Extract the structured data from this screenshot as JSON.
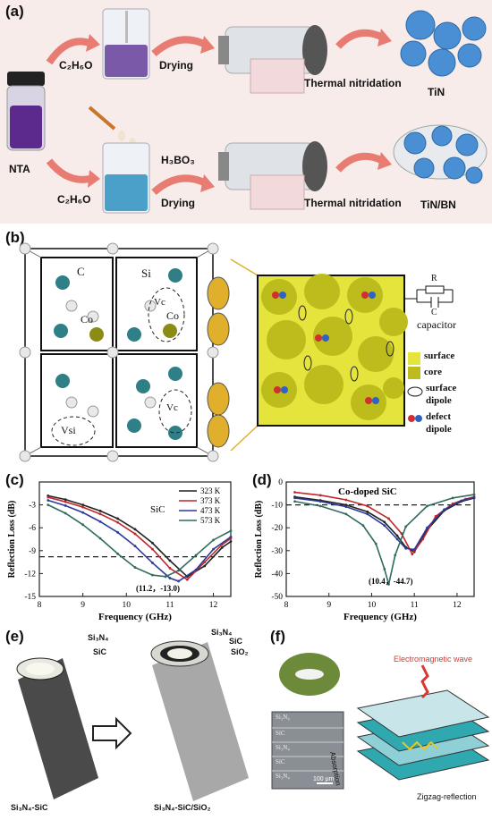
{
  "panel_a": {
    "label": "(a)",
    "nta": "NTA",
    "solvent_top": "C₂H₆O",
    "solvent_bottom": "C₂H₆O",
    "drying_top": "Drying",
    "drying_bottom": "Drying",
    "h3bo3": "H₃BO₃",
    "thermal_top": "Thermal nitridation",
    "thermal_bottom": "Thermal nitridation",
    "product_top": "TiN",
    "product_bottom": "TiN/BN"
  },
  "panel_b": {
    "label": "(b)",
    "atom_c": "C",
    "atom_si": "Si",
    "atom_co1": "Co",
    "atom_co2": "Co",
    "vc1": "Vc",
    "vc2": "Vc",
    "vsi": "Vsi",
    "r_label": "R",
    "c_label": "C",
    "capacitor": "capacitor",
    "legend_surface": "surface",
    "legend_core": "core",
    "legend_surface_dipole_1": "surface",
    "legend_surface_dipole_2": "dipole",
    "legend_defect_dipole_1": "defect",
    "legend_defect_dipole_2": "dipole"
  },
  "chart_data": [
    {
      "type": "line",
      "panel": "(c)",
      "title": "SiC",
      "xlabel": "Frequency (GHz)",
      "ylabel": "Reflection Loss (dB)",
      "xlim": [
        8,
        12.4
      ],
      "ylim": [
        -15,
        0
      ],
      "xticks": [
        "8",
        "9",
        "10",
        "11",
        "12"
      ],
      "yticks": [
        "-3",
        "-6",
        "-9",
        "-12",
        "-15"
      ],
      "reference_line": -9.8,
      "annotation": "(11.2，-13.0)",
      "legend_position": "top-right",
      "series": [
        {
          "name": "323 K",
          "color": "#222222",
          "x": [
            8.2,
            8.6,
            9.0,
            9.4,
            9.8,
            10.2,
            10.6,
            11.0,
            11.4,
            11.8,
            12.2,
            12.4
          ],
          "y": [
            -1.8,
            -2.3,
            -3.0,
            -3.8,
            -4.8,
            -6.2,
            -8.0,
            -10.3,
            -12.4,
            -11.0,
            -8.6,
            -7.8
          ]
        },
        {
          "name": "373 K",
          "color": "#c0272d",
          "x": [
            8.2,
            8.6,
            9.0,
            9.4,
            9.8,
            10.2,
            10.6,
            11.0,
            11.4,
            11.8,
            12.2,
            12.4
          ],
          "y": [
            -2.0,
            -2.6,
            -3.3,
            -4.2,
            -5.3,
            -6.8,
            -8.8,
            -11.3,
            -12.8,
            -10.5,
            -8.2,
            -7.4
          ]
        },
        {
          "name": "473 K",
          "color": "#2b3a9a",
          "x": [
            8.2,
            8.6,
            9.0,
            9.4,
            9.8,
            10.2,
            10.6,
            11.0,
            11.2,
            11.6,
            12.0,
            12.4
          ],
          "y": [
            -2.4,
            -3.1,
            -4.0,
            -5.2,
            -6.6,
            -8.4,
            -10.6,
            -12.6,
            -13.0,
            -11.5,
            -8.8,
            -7.2
          ]
        },
        {
          "name": "573 K",
          "color": "#2f6b5e",
          "x": [
            8.2,
            8.6,
            9.0,
            9.4,
            9.8,
            10.2,
            10.6,
            10.9,
            11.2,
            11.6,
            12.0,
            12.4
          ],
          "y": [
            -3.0,
            -4.1,
            -5.6,
            -7.4,
            -9.4,
            -11.2,
            -12.2,
            -12.4,
            -11.6,
            -9.6,
            -7.6,
            -6.4
          ]
        }
      ]
    },
    {
      "type": "line",
      "panel": "(d)",
      "title": "Co-doped SiC",
      "xlabel": "Frequency (GHz)",
      "ylabel": "Reflection Loss (dB)",
      "xlim": [
        8,
        12.4
      ],
      "ylim": [
        -50,
        0
      ],
      "xticks": [
        "8",
        "9",
        "10",
        "11",
        "12"
      ],
      "yticks": [
        "0",
        "-10",
        "-20",
        "-30",
        "-40",
        "-50"
      ],
      "reference_line": -10,
      "annotation": "(10.4，-44.7)",
      "series": [
        {
          "name": "",
          "color": "#222222",
          "x": [
            8.2,
            8.8,
            9.4,
            9.9,
            10.3,
            10.6,
            10.8,
            11.0,
            11.3,
            11.7,
            12.1,
            12.4
          ],
          "y": [
            -6.5,
            -8.0,
            -10.0,
            -13.0,
            -17.5,
            -23.5,
            -28.5,
            -30.5,
            -21.0,
            -12.5,
            -8.5,
            -7.0
          ]
        },
        {
          "name": "",
          "color": "#c0272d",
          "x": [
            8.2,
            8.8,
            9.4,
            9.9,
            10.4,
            10.7,
            10.95,
            11.2,
            11.5,
            11.9,
            12.2,
            12.4
          ],
          "y": [
            -4.5,
            -5.8,
            -7.8,
            -10.5,
            -16.0,
            -22.5,
            -31.5,
            -25.0,
            -15.0,
            -9.5,
            -7.5,
            -6.5
          ]
        },
        {
          "name": "",
          "color": "#2b3a9a",
          "x": [
            8.2,
            8.8,
            9.4,
            9.9,
            10.3,
            10.6,
            10.8,
            11.0,
            11.3,
            11.7,
            12.1,
            12.4
          ],
          "y": [
            -7.0,
            -8.5,
            -10.8,
            -14.0,
            -19.0,
            -25.0,
            -29.0,
            -29.5,
            -20.0,
            -12.0,
            -8.2,
            -6.8
          ]
        },
        {
          "name": "",
          "color": "#2f6b5e",
          "x": [
            8.2,
            8.8,
            9.4,
            9.8,
            10.1,
            10.3,
            10.4,
            10.55,
            10.8,
            11.3,
            11.9,
            12.4
          ],
          "y": [
            -8.5,
            -10.5,
            -14.0,
            -19.0,
            -27.0,
            -38.0,
            -44.7,
            -32.0,
            -19.5,
            -10.5,
            -7.0,
            -5.5
          ]
        }
      ]
    }
  ],
  "panel_e": {
    "label": "(e)",
    "left_core": "Si₃N₄",
    "left_shell": "SiC",
    "left_caption": "Si₃N₄-SiC",
    "right_core": "Si₃N₄",
    "right_shell1": "SiC",
    "right_shell2": "SiO₂",
    "right_caption": "Si₃N₄-SiC/SiO₂"
  },
  "panel_f": {
    "label": "(f)",
    "em_wave": "Electromagnetic wave",
    "layers": [
      "Si₃N₄",
      "SiC",
      "Si₃N₄",
      "SiC",
      "Si₃N₄"
    ],
    "scale": "100 μm",
    "absorption": "Absorption",
    "zigzag": "Zigzag-reflection"
  },
  "colors": {
    "tin_blue": "#4a8fd4",
    "grain_olive": "#bcbc1c",
    "grain_light": "#e4e43c",
    "si_teal": "#2f7f86",
    "co_olive": "#8b8b16"
  }
}
